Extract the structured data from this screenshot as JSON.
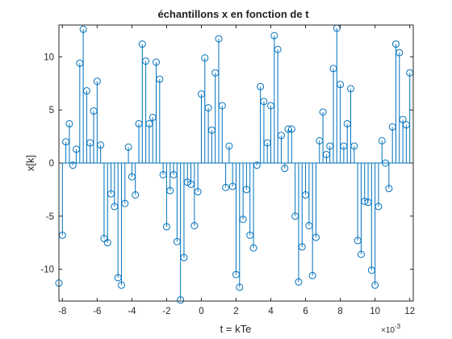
{
  "chart_data": {
    "type": "stem",
    "title": "échantillons x en fonction de t",
    "xlabel": "t = kTe",
    "ylabel": "x[k]",
    "x_exponent_base": "×10",
    "x_exponent_power": "-3",
    "xlim": [
      -8.2,
      12.2
    ],
    "ylim": [
      -13,
      13
    ],
    "xticks": [
      -8,
      -6,
      -4,
      -2,
      0,
      2,
      4,
      6,
      8,
      10,
      12
    ],
    "xtick_labels": [
      "-8",
      "-6",
      "-4",
      "-2",
      "0",
      "2",
      "4",
      "6",
      "8",
      "10",
      "12"
    ],
    "yticks": [
      -10,
      -5,
      0,
      5,
      10
    ],
    "ytick_labels": [
      "-10",
      "-5",
      "0",
      "5",
      "10"
    ],
    "grid": false,
    "color": "#0072BD",
    "x_start": -8.2,
    "x_step": 0.2,
    "values": [
      -11.3,
      -6.8,
      2.0,
      3.7,
      -0.2,
      1.3,
      9.4,
      12.6,
      6.8,
      1.9,
      4.9,
      7.7,
      1.7,
      -7.1,
      -7.5,
      -2.9,
      -4.1,
      -10.8,
      -11.5,
      -3.8,
      1.5,
      -1.3,
      -3.0,
      3.7,
      11.2,
      9.6,
      3.7,
      4.3,
      9.5,
      7.9,
      -1.1,
      -6.0,
      -2.6,
      -1.1,
      -7.4,
      -12.9,
      -8.9,
      -1.8,
      -2.0,
      -5.9,
      -2.7,
      6.5,
      9.9,
      5.2,
      3.1,
      8.5,
      11.7,
      5.4,
      -2.3,
      1.6,
      -2.2,
      -10.5,
      -11.7,
      -5.3,
      -2.5,
      -6.8,
      -8.0,
      -0.2,
      7.2,
      5.8,
      1.9,
      5.4,
      12.0,
      10.7,
      2.6,
      -0.5,
      3.2,
      3.2,
      -5.0,
      -11.2,
      -7.9,
      -3.0,
      -5.9,
      -10.6,
      -7.0,
      2.1,
      4.8,
      0.8,
      1.6,
      8.9,
      12.7,
      7.4,
      1.6,
      3.7,
      7.0,
      1.6,
      -7.3,
      -8.6,
      -3.6,
      -3.7,
      -10.1,
      -11.5,
      -4.1,
      2.1,
      0.0,
      -2.4,
      3.4,
      11.2,
      10.4,
      4.1,
      3.6,
      8.5
    ]
  }
}
